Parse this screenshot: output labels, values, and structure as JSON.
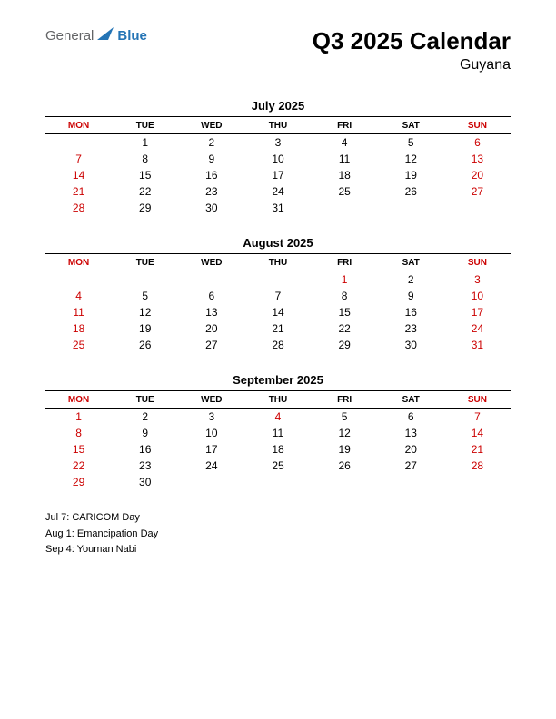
{
  "logo": {
    "text1": "General",
    "text2": "Blue",
    "color1": "#636466",
    "color2": "#2474b5",
    "triangle_color": "#2474b5"
  },
  "title": "Q3 2025 Calendar",
  "subtitle": "Guyana",
  "day_headers": [
    "MON",
    "TUE",
    "WED",
    "THU",
    "FRI",
    "SAT",
    "SUN"
  ],
  "red_header_cols": [
    0,
    6
  ],
  "text_color": "#000000",
  "holiday_color": "#cc0000",
  "border_color": "#000000",
  "background_color": "#ffffff",
  "months": [
    {
      "name": "July 2025",
      "weeks": [
        [
          "",
          "1",
          "2",
          "3",
          "4",
          "5",
          "6"
        ],
        [
          "7",
          "8",
          "9",
          "10",
          "11",
          "12",
          "13"
        ],
        [
          "14",
          "15",
          "16",
          "17",
          "18",
          "19",
          "20"
        ],
        [
          "21",
          "22",
          "23",
          "24",
          "25",
          "26",
          "27"
        ],
        [
          "28",
          "29",
          "30",
          "31",
          "",
          "",
          ""
        ]
      ],
      "red_days": [
        "6",
        "7",
        "13",
        "14",
        "20",
        "21",
        "27",
        "28"
      ]
    },
    {
      "name": "August 2025",
      "weeks": [
        [
          "",
          "",
          "",
          "",
          "1",
          "2",
          "3"
        ],
        [
          "4",
          "5",
          "6",
          "7",
          "8",
          "9",
          "10"
        ],
        [
          "11",
          "12",
          "13",
          "14",
          "15",
          "16",
          "17"
        ],
        [
          "18",
          "19",
          "20",
          "21",
          "22",
          "23",
          "24"
        ],
        [
          "25",
          "26",
          "27",
          "28",
          "29",
          "30",
          "31"
        ]
      ],
      "red_days": [
        "1",
        "3",
        "4",
        "10",
        "11",
        "17",
        "18",
        "24",
        "25",
        "31"
      ]
    },
    {
      "name": "September 2025",
      "weeks": [
        [
          "1",
          "2",
          "3",
          "4",
          "5",
          "6",
          "7"
        ],
        [
          "8",
          "9",
          "10",
          "11",
          "12",
          "13",
          "14"
        ],
        [
          "15",
          "16",
          "17",
          "18",
          "19",
          "20",
          "21"
        ],
        [
          "22",
          "23",
          "24",
          "25",
          "26",
          "27",
          "28"
        ],
        [
          "29",
          "30",
          "",
          "",
          "",
          "",
          ""
        ]
      ],
      "red_days": [
        "1",
        "4",
        "7",
        "8",
        "14",
        "15",
        "21",
        "22",
        "28",
        "29"
      ]
    }
  ],
  "holidays": [
    "Jul 7: CARICOM Day",
    "Aug 1: Emancipation Day",
    "Sep 4: Youman Nabi"
  ]
}
